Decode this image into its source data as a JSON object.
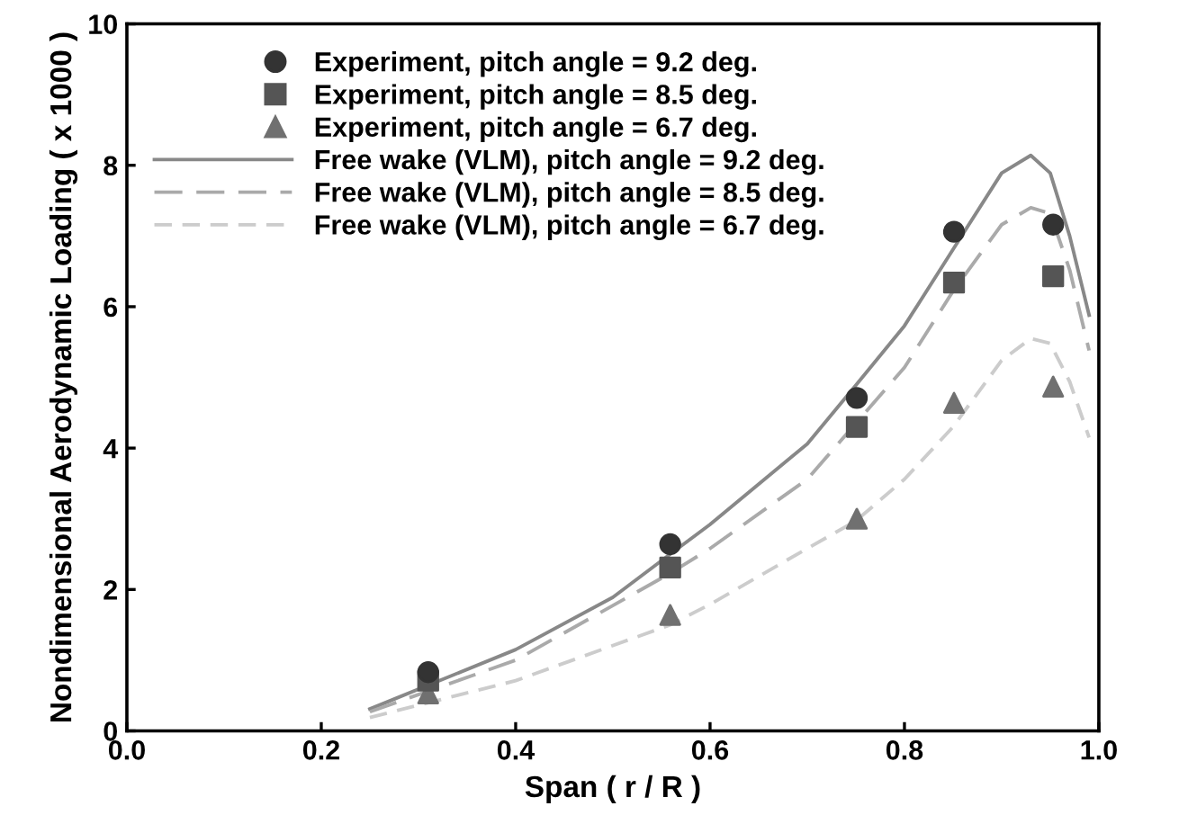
{
  "chart_data": {
    "type": "scatter",
    "xlabel": "Span ( r / R )",
    "ylabel": "Nondimensional Aerodynamic Loading ( x 1000 )",
    "xlim": [
      0,
      1
    ],
    "ylim": [
      0,
      10
    ],
    "xticks": [
      {
        "value": 0,
        "label": "0.0"
      },
      0.2,
      0.4,
      0.6,
      0.8,
      {
        "value": 1,
        "label": "1.0"
      }
    ],
    "yticks": [
      0,
      2,
      4,
      6,
      8,
      10
    ],
    "grid": false,
    "legend": "top left",
    "series": [
      {
        "name": "Experiment, pitch angle = 9.2 deg.",
        "marker": "circle",
        "color": "#333333",
        "x": [
          0.31,
          0.559,
          0.751,
          0.851,
          0.953
        ],
        "values": [
          0.83,
          2.64,
          4.71,
          7.06,
          7.16
        ]
      },
      {
        "name": "Experiment, pitch angle = 8.5 deg.",
        "marker": "square",
        "color": "#555555",
        "x": [
          0.31,
          0.559,
          0.751,
          0.851,
          0.953
        ],
        "values": [
          0.71,
          2.31,
          4.3,
          6.34,
          6.43
        ]
      },
      {
        "name": "Experiment, pitch angle = 6.7 deg.",
        "marker": "triangle",
        "color": "#707070",
        "x": [
          0.31,
          0.559,
          0.751,
          0.851,
          0.953
        ],
        "values": [
          0.53,
          1.64,
          3.0,
          4.64,
          4.87
        ]
      },
      {
        "name": "Free wake (VLM), pitch angle = 9.2 deg.",
        "type": "line",
        "line_style": "solid",
        "color": "#888888",
        "x": [
          0.25,
          0.4,
          0.5,
          0.559,
          0.6,
          0.7,
          0.75,
          0.8,
          0.85,
          0.9,
          0.93,
          0.95,
          0.97,
          0.99
        ],
        "values": [
          0.31,
          1.15,
          1.89,
          2.5,
          2.92,
          4.06,
          4.89,
          5.73,
          6.81,
          7.89,
          8.14,
          7.89,
          7.0,
          5.88
        ]
      },
      {
        "name": "Free wake (VLM), pitch angle = 8.5 deg.",
        "type": "line",
        "line_style": "dashed",
        "color": "#aaaaaa",
        "x": [
          0.25,
          0.4,
          0.559,
          0.6,
          0.7,
          0.75,
          0.8,
          0.85,
          0.9,
          0.93,
          0.95,
          0.97,
          0.99
        ],
        "values": [
          0.27,
          1.0,
          2.23,
          2.58,
          3.56,
          4.35,
          5.14,
          6.22,
          7.16,
          7.4,
          7.32,
          6.52,
          5.38
        ]
      },
      {
        "name": "Free wake (VLM), pitch angle = 6.7 deg.",
        "type": "line",
        "line_style": "dashed",
        "color": "#cccccc",
        "x": [
          0.25,
          0.4,
          0.559,
          0.6,
          0.7,
          0.75,
          0.8,
          0.85,
          0.9,
          0.93,
          0.95,
          0.97,
          0.99
        ],
        "values": [
          0.19,
          0.71,
          1.5,
          1.79,
          2.58,
          2.97,
          3.56,
          4.3,
          5.24,
          5.55,
          5.48,
          4.94,
          4.15
        ]
      }
    ]
  }
}
